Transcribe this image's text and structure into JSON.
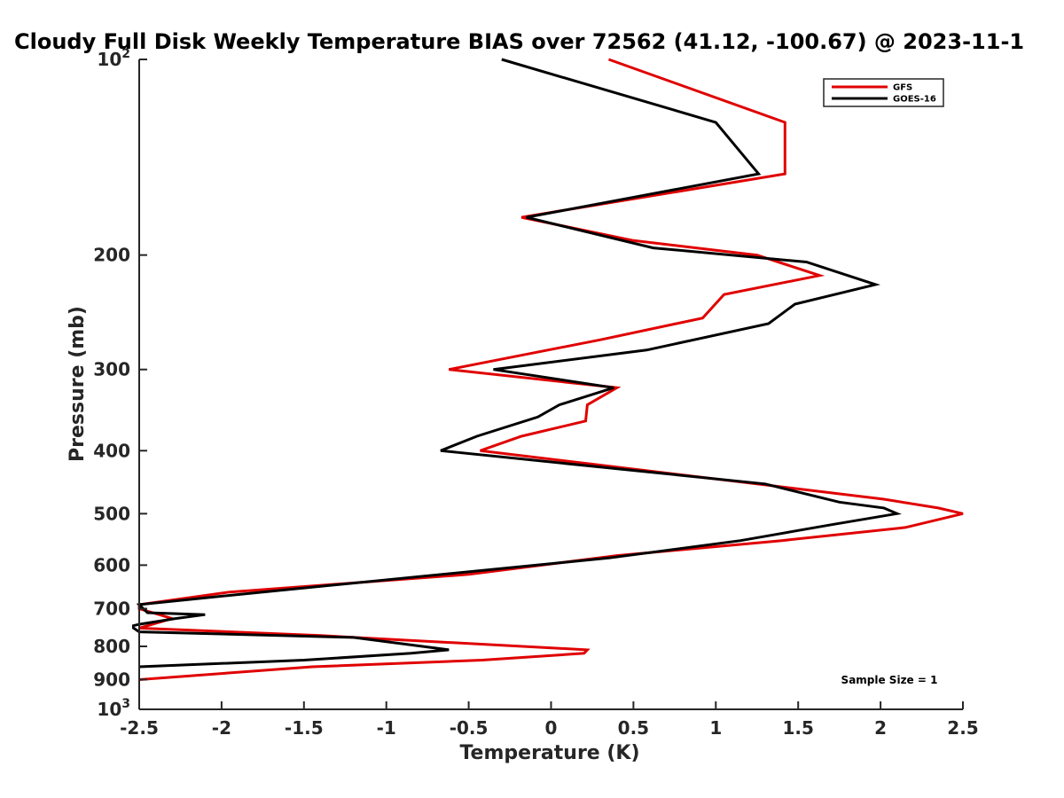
{
  "chart_data": {
    "type": "line",
    "title": "Cloudy Full Disk Weekly Temperature BIAS over 72562 (41.12, -100.67) @ 2023-11-1",
    "xlabel": "Temperature (K)",
    "ylabel": "Pressure (mb)",
    "xlim": [
      -2.5,
      2.5
    ],
    "ylim": [
      100,
      1000
    ],
    "y_scale": "log",
    "y_reversed": true,
    "grid": false,
    "legend_position": "top-right",
    "x_ticks": [
      "-2.5",
      "-2",
      "-1.5",
      "-1",
      "-0.5",
      "0",
      "0.5",
      "1",
      "1.5",
      "2",
      "2.5"
    ],
    "y_ticks": [
      {
        "value": 100,
        "base": "10",
        "exp": "2"
      },
      {
        "value": 200,
        "label": "200"
      },
      {
        "value": 300,
        "label": "300"
      },
      {
        "value": 400,
        "label": "400"
      },
      {
        "value": 500,
        "label": "500"
      },
      {
        "value": 600,
        "label": "600"
      },
      {
        "value": 700,
        "label": "700"
      },
      {
        "value": 800,
        "label": "800"
      },
      {
        "value": 900,
        "label": "900"
      },
      {
        "value": 1000,
        "base": "10",
        "exp": "3"
      }
    ],
    "annotation": "Sample Size = 1",
    "series": [
      {
        "name": "GFS",
        "color": "#e00000",
        "points": [
          [
            0.35,
            100
          ],
          [
            1.42,
            125
          ],
          [
            1.42,
            150
          ],
          [
            -0.18,
            175
          ],
          [
            0.5,
            190
          ],
          [
            1.25,
            200
          ],
          [
            1.63,
            215
          ],
          [
            1.05,
            230
          ],
          [
            0.92,
            250
          ],
          [
            0.3,
            270
          ],
          [
            -0.62,
            300
          ],
          [
            0.4,
            320
          ],
          [
            0.22,
            340
          ],
          [
            0.21,
            360
          ],
          [
            -0.18,
            380
          ],
          [
            -0.43,
            400
          ],
          [
            1.25,
            450
          ],
          [
            2.02,
            475
          ],
          [
            2.35,
            490
          ],
          [
            2.5,
            500
          ],
          [
            2.15,
            525
          ],
          [
            1.4,
            550
          ],
          [
            0.4,
            580
          ],
          [
            -0.5,
            620
          ],
          [
            -1.95,
            660
          ],
          [
            -2.5,
            690
          ],
          [
            -2.5,
            700
          ],
          [
            -2.3,
            725
          ],
          [
            -2.42,
            740
          ],
          [
            -2.5,
            750
          ],
          [
            -1.4,
            770
          ],
          [
            0.22,
            810
          ],
          [
            0.2,
            820
          ],
          [
            -0.42,
            840
          ],
          [
            -1.45,
            860
          ],
          [
            -2.5,
            900
          ]
        ]
      },
      {
        "name": "GOES-16",
        "color": "#000000",
        "points": [
          [
            -0.3,
            100
          ],
          [
            1.0,
            125
          ],
          [
            1.26,
            150
          ],
          [
            -0.15,
            175
          ],
          [
            0.62,
            195
          ],
          [
            1.55,
            205
          ],
          [
            1.97,
            222
          ],
          [
            1.48,
            238
          ],
          [
            1.32,
            255
          ],
          [
            0.58,
            280
          ],
          [
            -0.35,
            300
          ],
          [
            0.38,
            320
          ],
          [
            0.05,
            340
          ],
          [
            -0.08,
            355
          ],
          [
            -0.45,
            380
          ],
          [
            -0.67,
            400
          ],
          [
            1.3,
            450
          ],
          [
            1.75,
            480
          ],
          [
            2.02,
            490
          ],
          [
            2.1,
            500
          ],
          [
            1.7,
            520
          ],
          [
            1.15,
            550
          ],
          [
            0.35,
            585
          ],
          [
            -1.75,
            660
          ],
          [
            -2.5,
            690
          ],
          [
            -2.45,
            710
          ],
          [
            -2.1,
            715
          ],
          [
            -2.28,
            725
          ],
          [
            -2.5,
            740
          ],
          [
            -2.55,
            745
          ],
          [
            -2.5,
            760
          ],
          [
            -1.2,
            775
          ],
          [
            -0.62,
            810
          ],
          [
            -0.85,
            820
          ],
          [
            -1.5,
            840
          ],
          [
            -2.5,
            860
          ]
        ]
      }
    ]
  }
}
